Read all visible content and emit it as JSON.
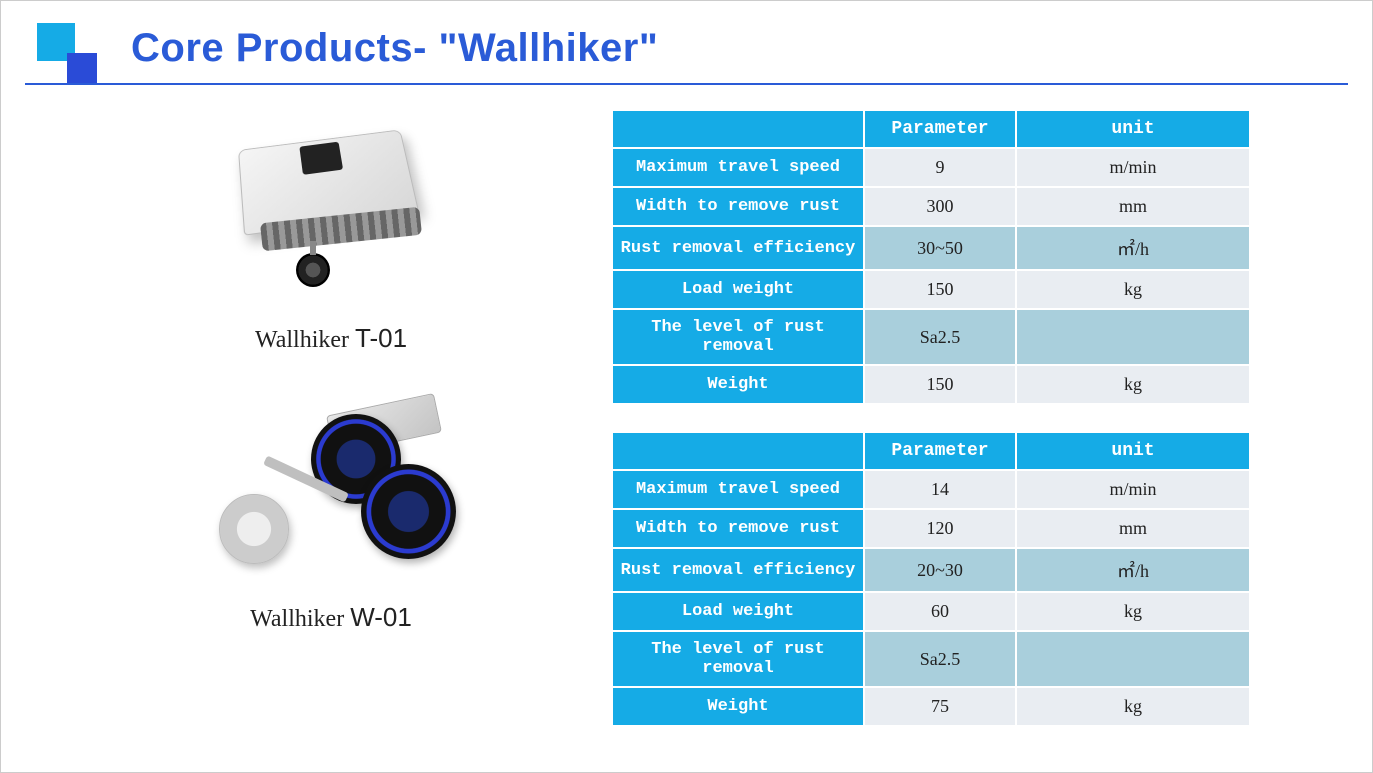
{
  "page": {
    "title": "Core Products-  \"Wallhiker\"",
    "title_color": "#2a5bd7",
    "divider_color": "#2a5bd7",
    "logo_colors": {
      "square1": "#15abe6",
      "square2": "#2a4bd7"
    }
  },
  "products": [
    {
      "caption_prefix": "Wallhiker ",
      "model": "T-01"
    },
    {
      "caption_prefix": "Wallhiker ",
      "model": "W-01"
    }
  ],
  "table_style": {
    "header_bg": "#15abe6",
    "header_fg": "#ffffff",
    "row_odd_bg": "#e9edf2",
    "row_even_bg": "#a9cfdc",
    "label_font": "Courier New",
    "value_font": "Times New Roman"
  },
  "tables": [
    {
      "headers": [
        "",
        "Parameter",
        "unit"
      ],
      "rows": [
        {
          "label": "Maximum travel speed",
          "value": "9",
          "unit": "m/min"
        },
        {
          "label": "Width to remove rust",
          "value": "300",
          "unit": "mm"
        },
        {
          "label": "Rust removal efficiency",
          "value": "30~50",
          "unit": "㎡/h"
        },
        {
          "label": "Load weight",
          "value": "150",
          "unit": "kg"
        },
        {
          "label": "The level of rust removal",
          "value": "Sa2.5",
          "unit": ""
        },
        {
          "label": "Weight",
          "value": "150",
          "unit": "kg"
        }
      ]
    },
    {
      "headers": [
        "",
        "Parameter",
        "unit"
      ],
      "rows": [
        {
          "label": "Maximum travel speed",
          "value": "14",
          "unit": "m/min"
        },
        {
          "label": "Width to remove rust",
          "value": "120",
          "unit": "mm"
        },
        {
          "label": "Rust removal efficiency",
          "value": "20~30",
          "unit": "㎡/h"
        },
        {
          "label": "Load weight",
          "value": "60",
          "unit": "kg"
        },
        {
          "label": "The level of rust removal",
          "value": "Sa2.5",
          "unit": ""
        },
        {
          "label": "Weight",
          "value": "75",
          "unit": "kg"
        }
      ]
    }
  ]
}
